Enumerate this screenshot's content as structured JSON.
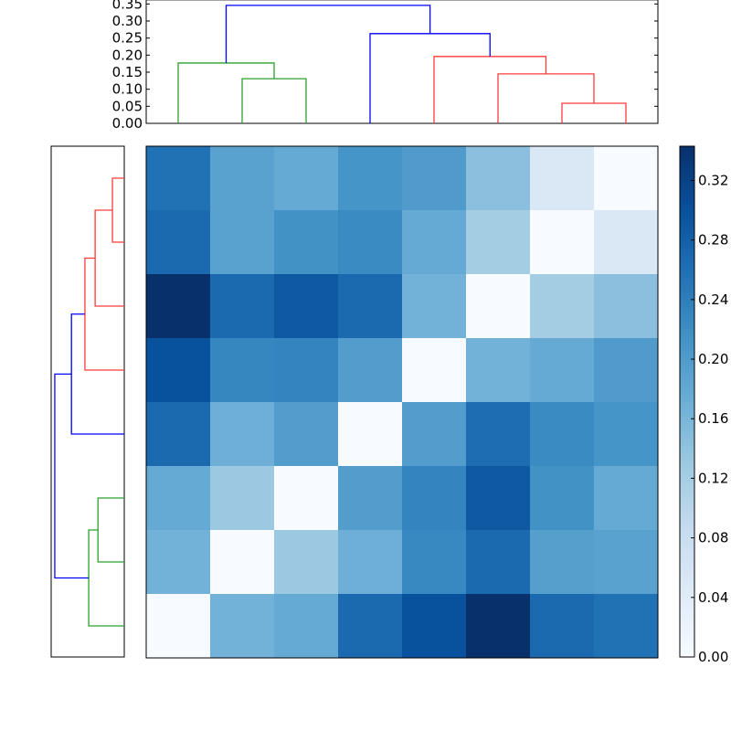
{
  "chart_data": [
    {
      "type": "heatmap",
      "colormap": "Blues",
      "color_range": [
        0.0,
        0.343
      ],
      "colorbar": {
        "ticks": [
          0.0,
          0.04,
          0.08,
          0.12,
          0.16,
          0.2,
          0.24,
          0.28,
          0.32
        ],
        "tick_labels": [
          "0.00",
          "0.04",
          "0.08",
          "0.12",
          "0.16",
          "0.20",
          "0.24",
          "0.28",
          "0.32"
        ],
        "placement": "right"
      },
      "values": [
        [
          0.257,
          0.19,
          0.178,
          0.21,
          0.2,
          0.145,
          0.05,
          0.0
        ],
        [
          0.267,
          0.19,
          0.214,
          0.223,
          0.178,
          0.122,
          0.0,
          0.05
        ],
        [
          0.343,
          0.267,
          0.29,
          0.267,
          0.165,
          0.0,
          0.122,
          0.145
        ],
        [
          0.3,
          0.23,
          0.233,
          0.198,
          0.0,
          0.165,
          0.178,
          0.2
        ],
        [
          0.267,
          0.17,
          0.198,
          0.0,
          0.198,
          0.262,
          0.223,
          0.21
        ],
        [
          0.178,
          0.13,
          0.0,
          0.198,
          0.233,
          0.29,
          0.214,
          0.178
        ],
        [
          0.165,
          0.0,
          0.13,
          0.17,
          0.228,
          0.267,
          0.195,
          0.19
        ],
        [
          0.0,
          0.165,
          0.178,
          0.267,
          0.3,
          0.343,
          0.267,
          0.257
        ]
      ]
    },
    {
      "type": "dendrogram",
      "orientation": "top",
      "ylim": [
        0.0,
        0.362
      ],
      "yticks": [
        0.0,
        0.05,
        0.1,
        0.15,
        0.2,
        0.25,
        0.3,
        0.35
      ],
      "ytick_labels": [
        "0.00",
        "0.05",
        "0.10",
        "0.15",
        "0.20",
        "0.25",
        "0.30",
        "0.35"
      ],
      "leaf_count": 8,
      "links": [
        {
          "x": [
            1,
            2
          ],
          "base": [
            0,
            0
          ],
          "height": 0.131,
          "color": "#2ca02c"
        },
        {
          "x": [
            0,
            1.5
          ],
          "base": [
            0,
            0.131
          ],
          "height": 0.177,
          "color": "#2ca02c"
        },
        {
          "x": [
            6,
            7
          ],
          "base": [
            0,
            0
          ],
          "height": 0.059,
          "color": "#ff3b3b"
        },
        {
          "x": [
            5,
            6.5
          ],
          "base": [
            0,
            0.059
          ],
          "height": 0.145,
          "color": "#ff3b3b"
        },
        {
          "x": [
            4,
            5.75
          ],
          "base": [
            0,
            0.145
          ],
          "height": 0.196,
          "color": "#ff3b3b"
        },
        {
          "x": [
            3,
            4.875
          ],
          "base": [
            0,
            0.196
          ],
          "height": 0.263,
          "color": "#0000ff"
        },
        {
          "x": [
            0.75,
            3.9375
          ],
          "base": [
            0.177,
            0.263
          ],
          "height": 0.346,
          "color": "#0000ff"
        }
      ]
    },
    {
      "type": "dendrogram",
      "orientation": "left",
      "xlim": [
        0.0,
        0.364
      ],
      "leaf_count": 8,
      "links": [
        {
          "x": [
            6,
            5
          ],
          "base": [
            0,
            0
          ],
          "height": 0.131,
          "color": "#2ca02c"
        },
        {
          "x": [
            7,
            5.5
          ],
          "base": [
            0,
            0.131
          ],
          "height": 0.177,
          "color": "#2ca02c"
        },
        {
          "x": [
            1,
            0
          ],
          "base": [
            0,
            0
          ],
          "height": 0.059,
          "color": "#ff3b3b"
        },
        {
          "x": [
            2,
            0.5
          ],
          "base": [
            0,
            0.059
          ],
          "height": 0.145,
          "color": "#ff3b3b"
        },
        {
          "x": [
            3,
            1.25
          ],
          "base": [
            0,
            0.145
          ],
          "height": 0.196,
          "color": "#ff3b3b"
        },
        {
          "x": [
            4,
            2.125
          ],
          "base": [
            0,
            0.196
          ],
          "height": 0.263,
          "color": "#0000ff"
        },
        {
          "x": [
            6.25,
            3.0625
          ],
          "base": [
            0.177,
            0.263
          ],
          "height": 0.346,
          "color": "#0000ff"
        }
      ]
    }
  ]
}
